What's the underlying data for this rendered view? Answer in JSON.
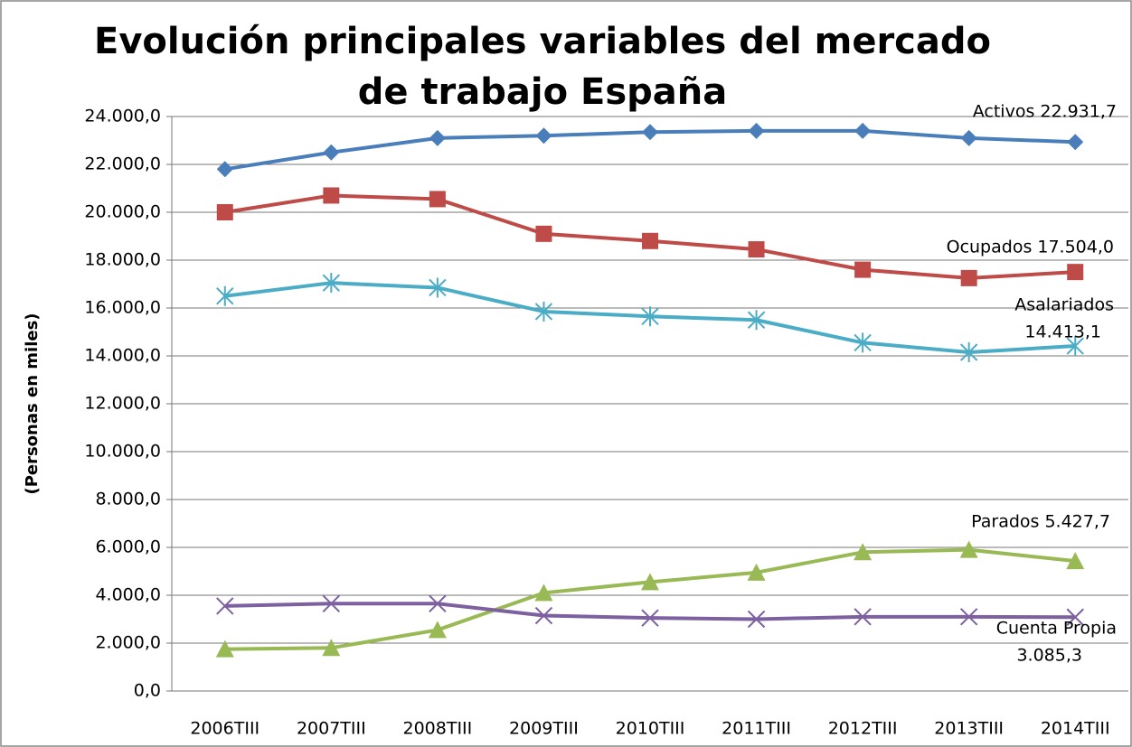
{
  "chart_data": {
    "type": "line",
    "title": [
      "Evolución principales variables del mercado",
      "de trabajo España"
    ],
    "y_label": "(Personas en miles)",
    "categories": [
      "2006TIII",
      "2007TIII",
      "2008TIII",
      "2009TIII",
      "2010TIII",
      "2011TIII",
      "2012TIII",
      "2013TIII",
      "2014TIII"
    ],
    "series": [
      {
        "name": "Activos",
        "color": "#4a7ebb",
        "marker": "diamond",
        "values": [
          21800,
          22500,
          23100,
          23200,
          23350,
          23400,
          23400,
          23100,
          22931.7
        ]
      },
      {
        "name": "Ocupados",
        "color": "#be4b48",
        "marker": "square",
        "values": [
          20000,
          20700,
          20550,
          19100,
          18800,
          18450,
          17600,
          17250,
          17504.0
        ]
      },
      {
        "name": "Asalariados",
        "color": "#4bacc6",
        "marker": "star",
        "values": [
          16500,
          17050,
          16850,
          15850,
          15650,
          15500,
          14550,
          14150,
          14413.1
        ]
      },
      {
        "name": "Parados",
        "color": "#98b954",
        "marker": "triangle",
        "values": [
          1750,
          1800,
          2550,
          4100,
          4550,
          4950,
          5800,
          5900,
          5427.7
        ]
      },
      {
        "name": "Cuenta Propia",
        "color": "#7d60a0",
        "marker": "x",
        "values": [
          3550,
          3650,
          3650,
          3150,
          3050,
          3000,
          3100,
          3100,
          3085.3
        ]
      }
    ],
    "annotations": [
      [
        "Activos 22.931,7"
      ],
      [
        "Ocupados 17.504,0"
      ],
      [
        "Asalariados",
        "14.413,1"
      ],
      [
        "Parados 5.427,7"
      ],
      [
        "Cuenta Propia",
        "3.085,3"
      ]
    ],
    "ylim": [
      0,
      24000
    ],
    "yticks": [
      {
        "value": 0,
        "label": "0,0"
      },
      {
        "value": 2000,
        "label": "2.000,0"
      },
      {
        "value": 4000,
        "label": "4.000,0"
      },
      {
        "value": 6000,
        "label": "6.000,0"
      },
      {
        "value": 8000,
        "label": "8.000,0"
      },
      {
        "value": 10000,
        "label": "10.000,0"
      },
      {
        "value": 12000,
        "label": "12.000,0"
      },
      {
        "value": 14000,
        "label": "14.000,0"
      },
      {
        "value": 16000,
        "label": "16.000,0"
      },
      {
        "value": 18000,
        "label": "18.000,0"
      },
      {
        "value": 20000,
        "label": "20.000,0"
      },
      {
        "value": 22000,
        "label": "22.000,0"
      },
      {
        "value": 24000,
        "label": "24.000,0"
      }
    ],
    "grid": true
  }
}
